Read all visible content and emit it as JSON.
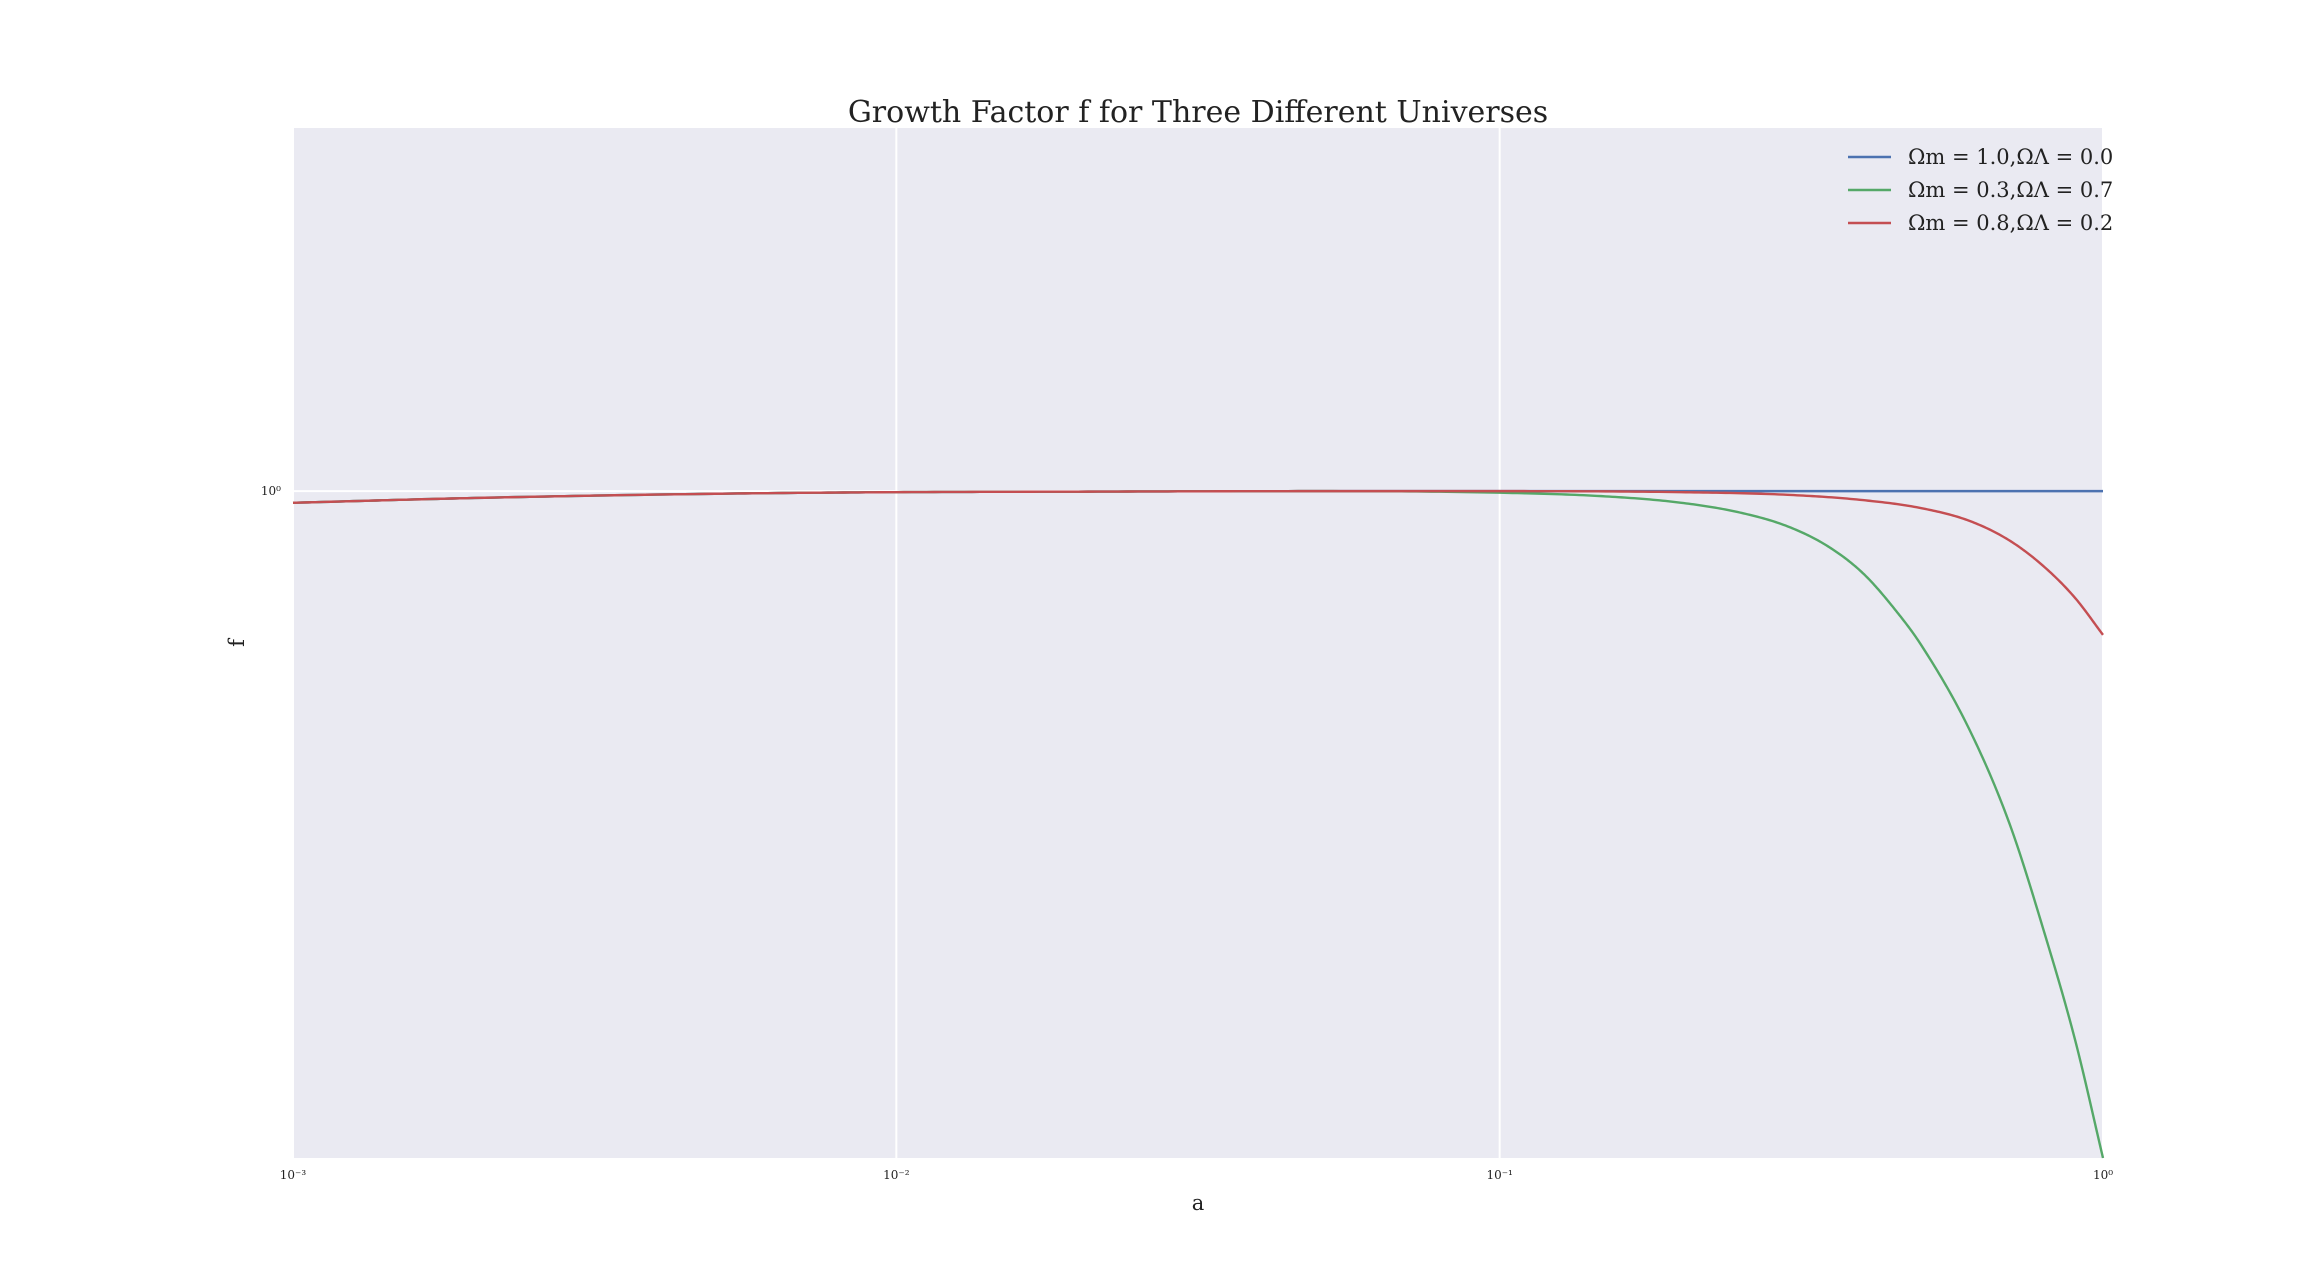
{
  "chart_data": {
    "type": "line",
    "title": "Growth Factor f for Three Different Universes",
    "xlabel": "a",
    "ylabel": "f",
    "xscale": "log",
    "yscale": "log",
    "xlim": [
      0.001,
      1.0
    ],
    "ylim": [
      0.28,
      2.0
    ],
    "x_ticks": [
      {
        "label": "10⁻³",
        "value": 0.001
      },
      {
        "label": "10⁻²",
        "value": 0.01
      },
      {
        "label": "10⁻¹",
        "value": 0.1
      },
      {
        "label": "10⁰",
        "value": 1.0
      }
    ],
    "y_ticks": [
      {
        "label": "10⁰",
        "value": 1.0
      }
    ],
    "grid": true,
    "legend_position": "top-right",
    "colors": {
      "background": "#eaeaf2",
      "grid": "#ffffff"
    },
    "series": [
      {
        "name": "Ωm = 1.0,ΩΛ = 0.0",
        "color": "#4c72b0",
        "x": [
          0.001,
          0.002,
          0.005,
          0.01,
          0.02,
          0.05,
          0.1,
          0.2,
          0.3,
          0.4,
          0.5,
          0.6,
          0.7,
          0.8,
          0.9,
          1.0
        ],
        "y": [
          0.978,
          0.987,
          0.995,
          0.998,
          0.999,
          1.0,
          1.0,
          1.0,
          1.0,
          1.0,
          1.0,
          1.0,
          1.0,
          1.0,
          1.0,
          1.0
        ]
      },
      {
        "name": "Ωm = 0.3,ΩΛ = 0.7",
        "color": "#55a868",
        "x": [
          0.001,
          0.002,
          0.005,
          0.01,
          0.02,
          0.05,
          0.1,
          0.15,
          0.2,
          0.25,
          0.3,
          0.35,
          0.4,
          0.45,
          0.5,
          0.6,
          0.7,
          0.8,
          0.9,
          1.0
        ],
        "y": [
          0.978,
          0.987,
          0.995,
          0.998,
          0.999,
          1.0,
          0.997,
          0.99,
          0.978,
          0.96,
          0.935,
          0.9,
          0.855,
          0.8,
          0.745,
          0.635,
          0.53,
          0.43,
          0.35,
          0.28
        ]
      },
      {
        "name": "Ωm = 0.8,ΩΛ = 0.2",
        "color": "#c44e52",
        "x": [
          0.001,
          0.002,
          0.005,
          0.01,
          0.02,
          0.05,
          0.1,
          0.2,
          0.3,
          0.4,
          0.5,
          0.6,
          0.7,
          0.8,
          0.9,
          1.0
        ],
        "y": [
          0.978,
          0.987,
          0.995,
          0.998,
          0.999,
          1.0,
          1.0,
          0.998,
          0.993,
          0.983,
          0.968,
          0.945,
          0.91,
          0.865,
          0.815,
          0.76
        ]
      }
    ]
  }
}
